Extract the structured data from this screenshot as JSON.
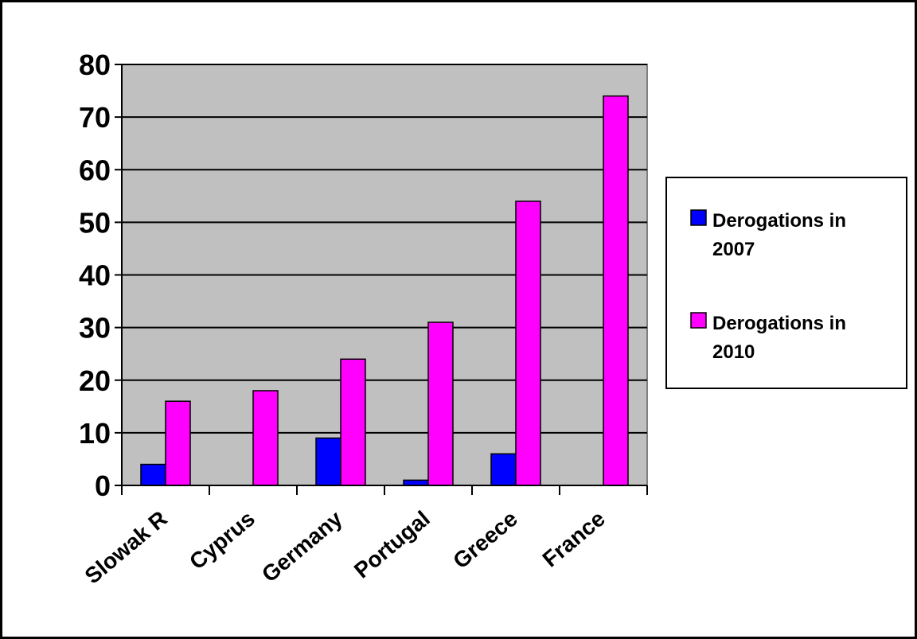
{
  "chart_data": {
    "type": "bar",
    "categories": [
      "Slowak R",
      "Cyprus",
      "Germany",
      "Portugal",
      "Greece",
      "France"
    ],
    "series": [
      {
        "name": "Derogations in 2007",
        "values": [
          4,
          0,
          9,
          1,
          6,
          0
        ],
        "color": "#0000ff"
      },
      {
        "name": "Derogations in 2010",
        "values": [
          16,
          18,
          24,
          31,
          54,
          74
        ],
        "color": "#ff00ff"
      }
    ],
    "ylim": [
      0,
      80
    ],
    "yticks": [
      0,
      10,
      20,
      30,
      40,
      50,
      60,
      70,
      80
    ],
    "title": "",
    "xlabel": "",
    "ylabel": "",
    "grid": true,
    "legend_position": "right",
    "plot_background": "#c0c0c0"
  }
}
